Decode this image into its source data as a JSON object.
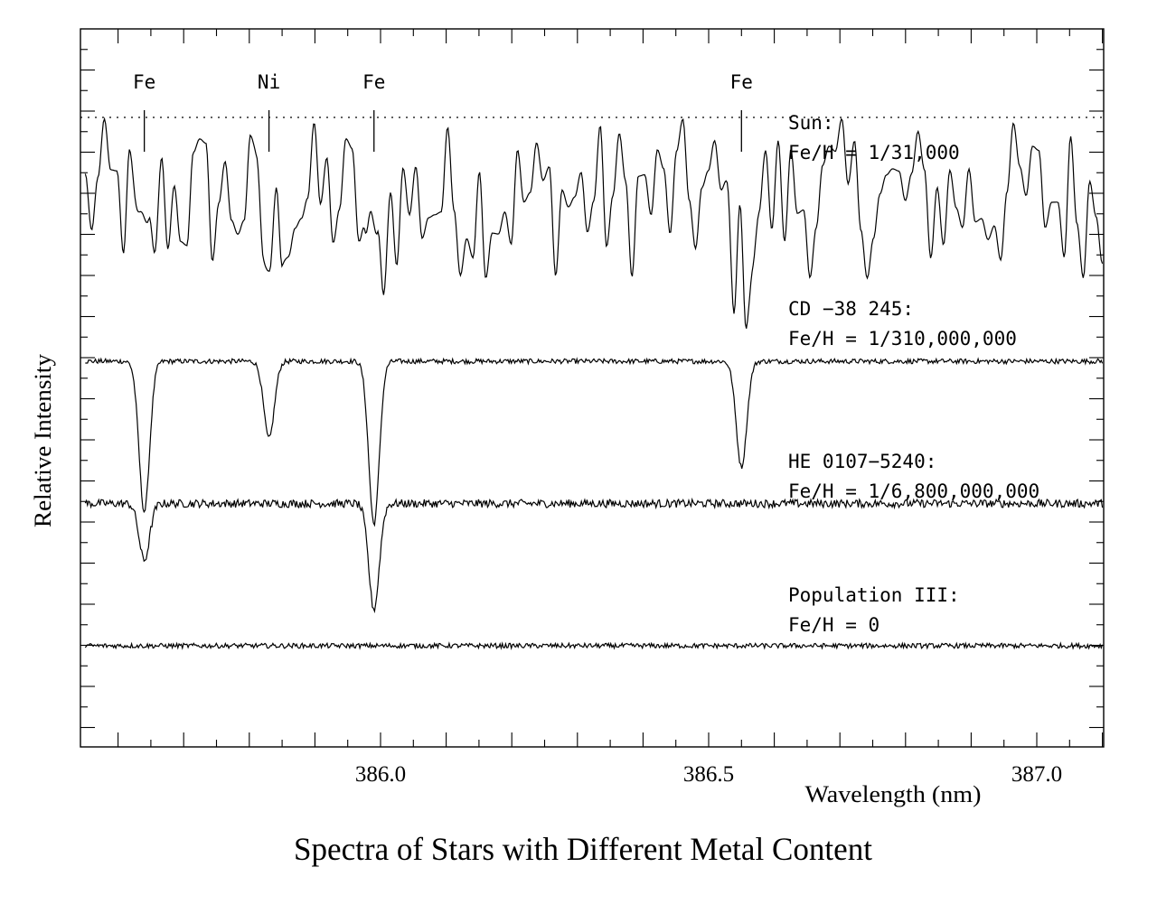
{
  "chart_data": {
    "type": "line",
    "title": "Spectra of Stars with Different Metal Content",
    "xlabel": "Wavelength (nm)",
    "ylabel": "Relative Intensity",
    "xlim": [
      385.55,
      387.1
    ],
    "x_ticks": [
      386.0,
      386.5,
      387.0
    ],
    "x_tick_labels": [
      "386.0",
      "386.5",
      "387.0"
    ],
    "y_tick_labels": false,
    "grid": false,
    "line_identifications": [
      {
        "element": "Fe",
        "wavelength": 385.64
      },
      {
        "element": "Ni",
        "wavelength": 385.83
      },
      {
        "element": "Fe",
        "wavelength": 385.99
      },
      {
        "element": "Fe",
        "wavelength": 386.55
      }
    ],
    "series": [
      {
        "name_line1": "Sun:",
        "name_line2": "Fe/H  =  1/31,000",
        "continuum": 6.0,
        "depth": 0.9,
        "line_depths": [
          0.85,
          0.75,
          0.9,
          0.95
        ],
        "noise": 0.0,
        "blended": true
      },
      {
        "name_line1": "CD  −38  245:",
        "name_line2": "Fe/H  =  1/310,000,000",
        "continuum": 4.0,
        "line_depths": [
          1.85,
          0.95,
          2.0,
          1.3
        ],
        "noise": 0.03,
        "blended": false
      },
      {
        "name_line1": "HE  0107−5240:",
        "name_line2": "Fe/H  =  1/6,800,000,000",
        "continuum": 2.25,
        "line_depths": [
          0.7,
          0.0,
          1.3,
          0.0
        ],
        "noise": 0.05,
        "blended": false
      },
      {
        "name_line1": "Population  III:",
        "name_line2": "Fe/H  =  0",
        "continuum": 0.5,
        "line_depths": [
          0.0,
          0.0,
          0.0,
          0.0
        ],
        "noise": 0.03,
        "blended": false
      }
    ],
    "reference_line": {
      "style": "dotted",
      "y": 7.0
    }
  }
}
